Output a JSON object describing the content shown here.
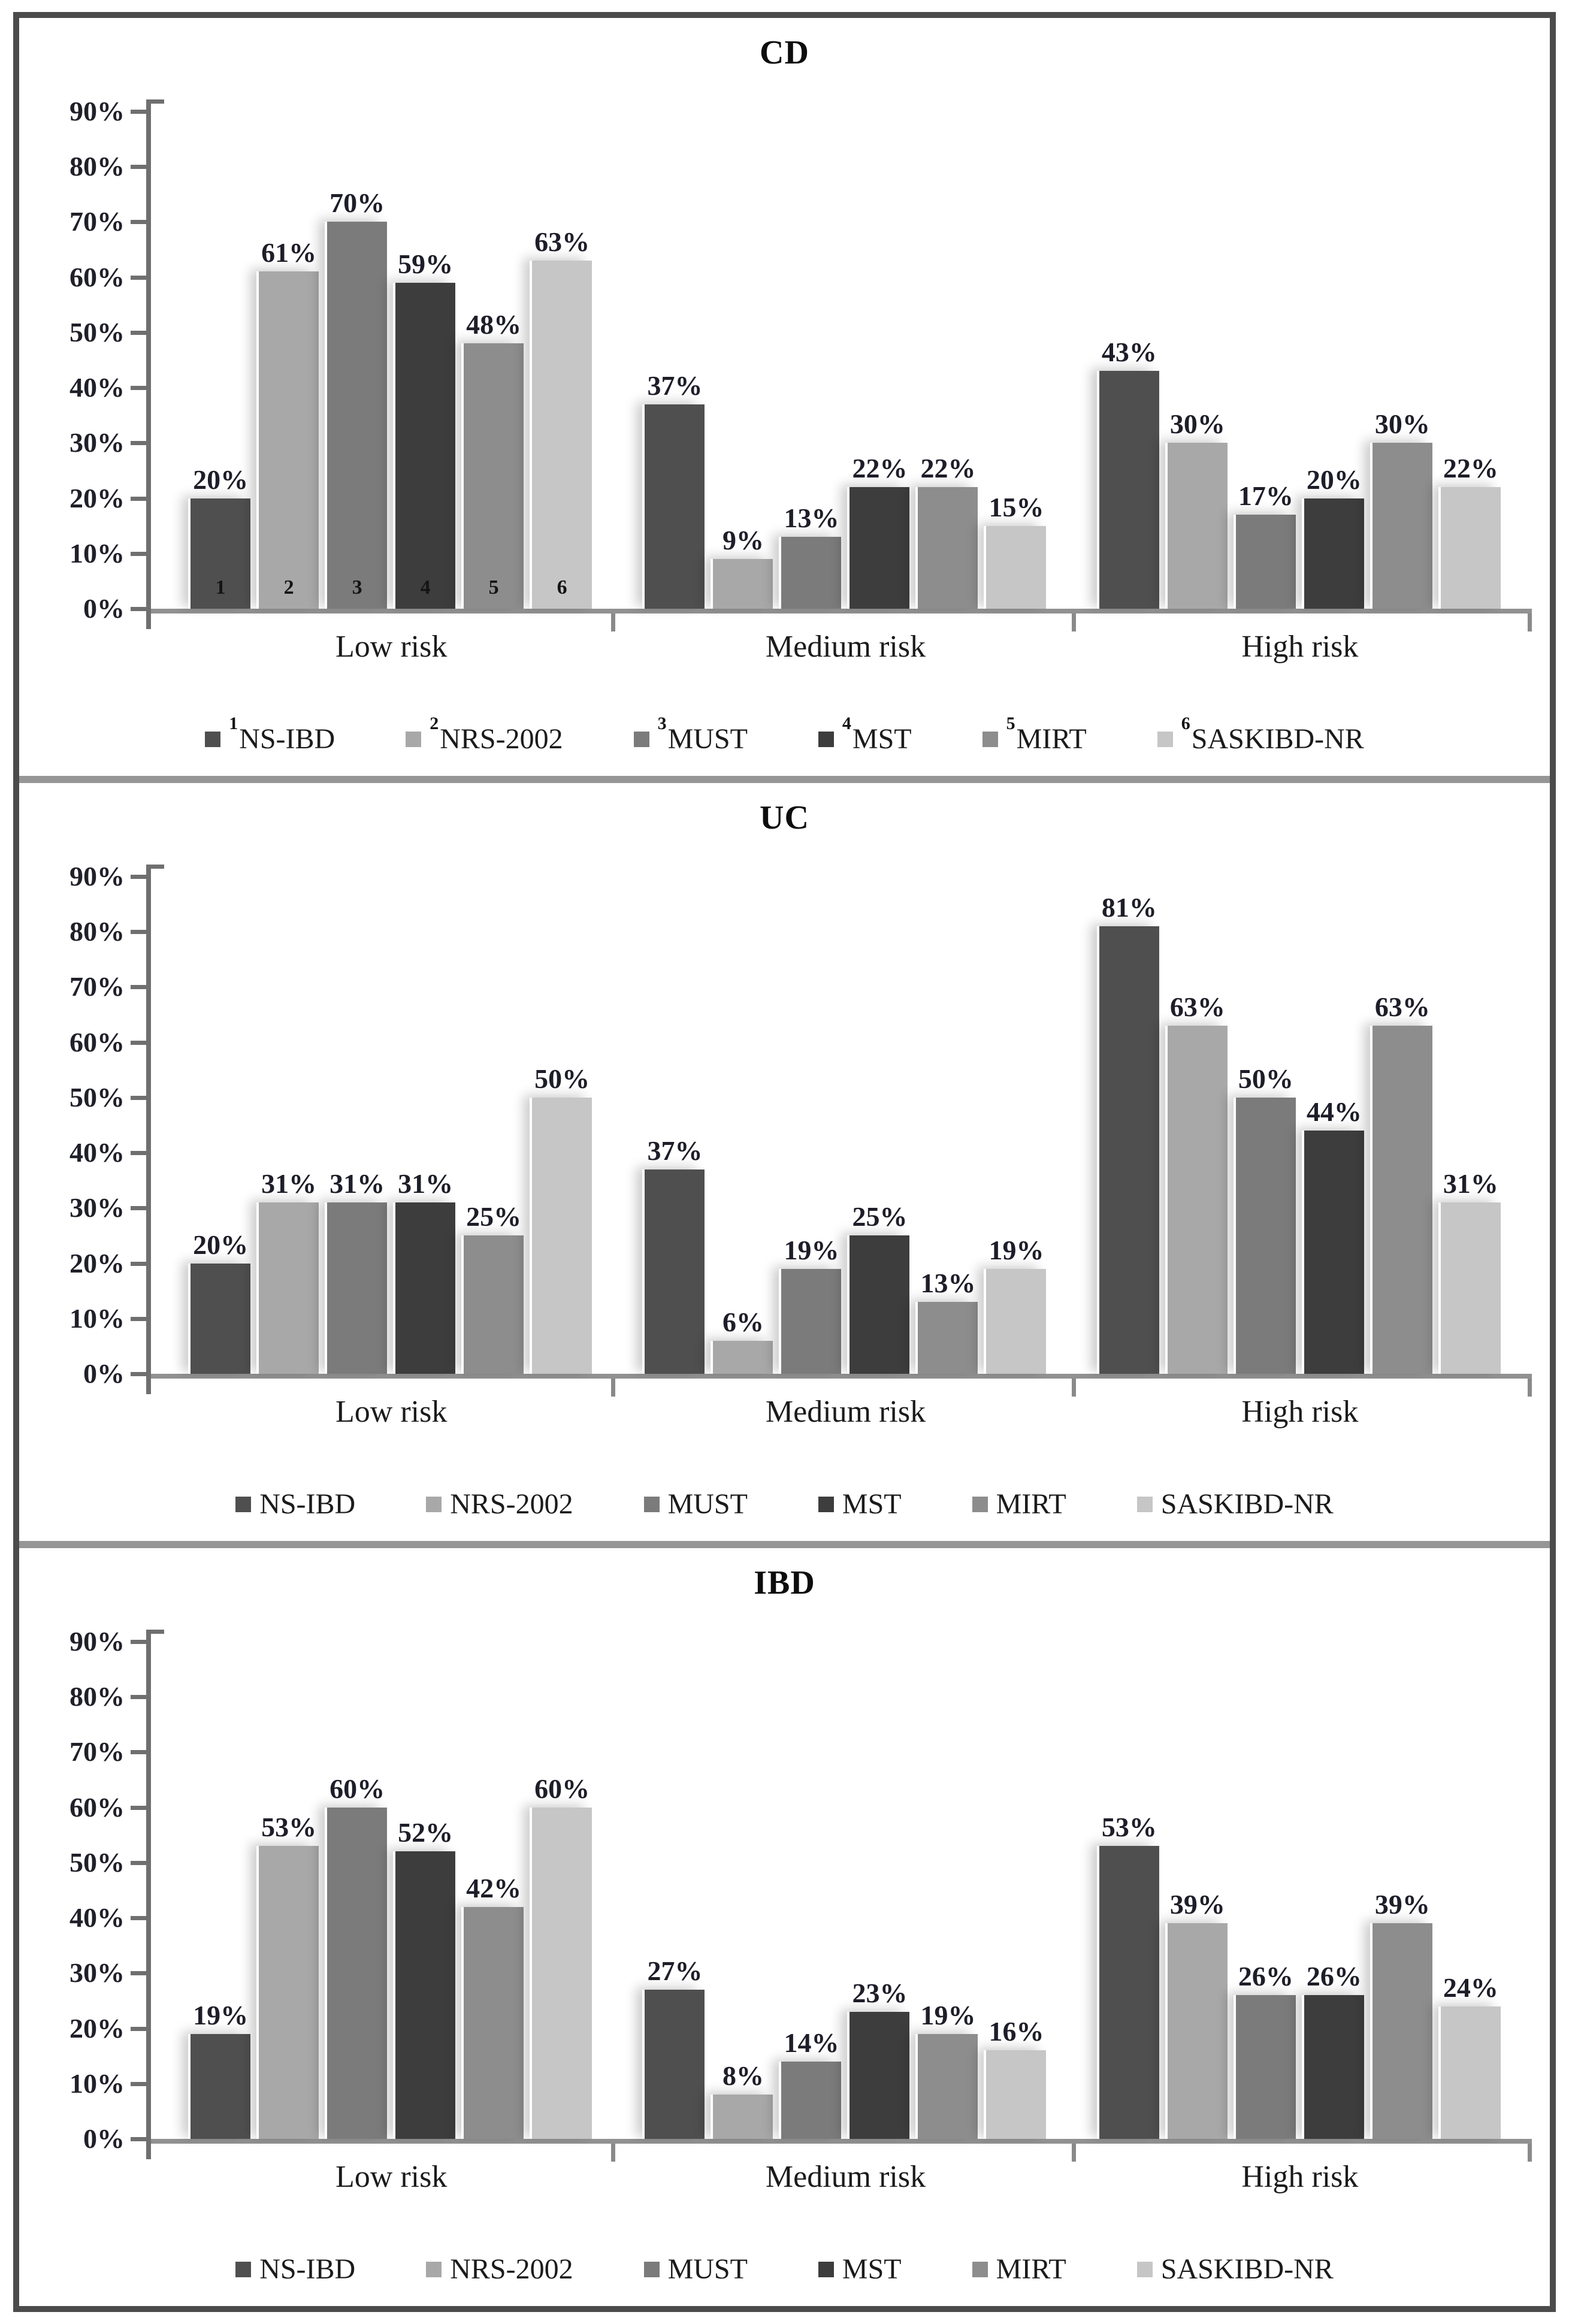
{
  "figure": {
    "background": "#ffffff",
    "border_color": "#4b4b4b",
    "separator_color": "#969696",
    "y_axis_color": "#6f6f6f",
    "x_axis_color": "#919191",
    "label_color": "#1e1e2a"
  },
  "series_colors": [
    "#4f4f4f",
    "#a8a8a8",
    "#7b7b7b",
    "#3d3d3d",
    "#8d8d8d",
    "#c6c6c6"
  ],
  "chart_data": [
    {
      "type": "bar",
      "title": "CD",
      "categories": [
        "Low risk",
        "Medium risk",
        "High risk"
      ],
      "series": [
        {
          "name": "NS-IBD",
          "values": [
            20,
            37,
            43
          ]
        },
        {
          "name": "NRS-2002",
          "values": [
            61,
            9,
            30
          ]
        },
        {
          "name": "MUST",
          "values": [
            70,
            13,
            17
          ]
        },
        {
          "name": "MST",
          "values": [
            59,
            22,
            20
          ]
        },
        {
          "name": "MIRT",
          "values": [
            48,
            22,
            30
          ]
        },
        {
          "name": "SASKIBD-NR",
          "values": [
            63,
            15,
            22
          ]
        }
      ],
      "value_suffix": "%",
      "ylim": [
        0,
        90
      ],
      "y_ticks": [
        "90%",
        "80%",
        "70%",
        "60%",
        "50%",
        "40%",
        "30%",
        "20%",
        "10%",
        "0%"
      ],
      "grid": false,
      "legend_position": "bottom",
      "legend_superscripts": [
        "1",
        "2",
        "3",
        "4",
        "5",
        "6"
      ],
      "bar_group_numbers": [
        "1",
        "2",
        "3",
        "4",
        "5",
        "6"
      ]
    },
    {
      "type": "bar",
      "title": "UC",
      "categories": [
        "Low risk",
        "Medium risk",
        "High risk"
      ],
      "series": [
        {
          "name": "NS-IBD",
          "values": [
            20,
            37,
            81
          ]
        },
        {
          "name": "NRS-2002",
          "values": [
            31,
            6,
            63
          ]
        },
        {
          "name": "MUST",
          "values": [
            31,
            19,
            50
          ]
        },
        {
          "name": "MST",
          "values": [
            31,
            25,
            44
          ]
        },
        {
          "name": "MIRT",
          "values": [
            25,
            13,
            63
          ]
        },
        {
          "name": "SASKIBD-NR",
          "values": [
            50,
            19,
            31
          ]
        }
      ],
      "value_suffix": "%",
      "ylim": [
        0,
        90
      ],
      "y_ticks": [
        "90%",
        "80%",
        "70%",
        "60%",
        "50%",
        "40%",
        "30%",
        "20%",
        "10%",
        "0%"
      ],
      "grid": false,
      "legend_position": "bottom",
      "legend_superscripts": null,
      "bar_group_numbers": null
    },
    {
      "type": "bar",
      "title": "IBD",
      "categories": [
        "Low risk",
        "Medium risk",
        "High risk"
      ],
      "series": [
        {
          "name": "NS-IBD",
          "values": [
            19,
            27,
            53
          ]
        },
        {
          "name": "NRS-2002",
          "values": [
            53,
            8,
            39
          ]
        },
        {
          "name": "MUST",
          "values": [
            60,
            14,
            26
          ]
        },
        {
          "name": "MST",
          "values": [
            52,
            23,
            26
          ]
        },
        {
          "name": "MIRT",
          "values": [
            42,
            19,
            39
          ]
        },
        {
          "name": "SASKIBD-NR",
          "values": [
            60,
            16,
            24
          ]
        }
      ],
      "value_suffix": "%",
      "ylim": [
        0,
        90
      ],
      "y_ticks": [
        "90%",
        "80%",
        "70%",
        "60%",
        "50%",
        "40%",
        "30%",
        "20%",
        "10%",
        "0%"
      ],
      "grid": false,
      "legend_position": "bottom",
      "legend_superscripts": null,
      "bar_group_numbers": null
    }
  ]
}
